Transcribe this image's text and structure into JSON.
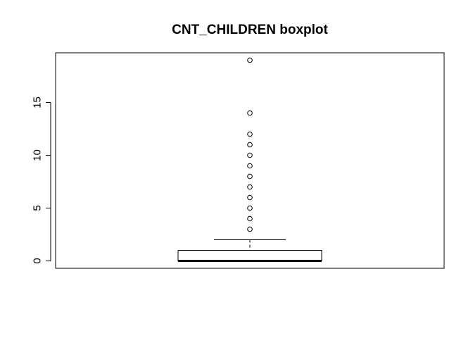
{
  "chart_data": {
    "type": "boxplot",
    "title": "CNT_CHILDREN boxplot",
    "xlabel": "",
    "ylabel": "",
    "ylim": [
      -0.7,
      19.7
    ],
    "yticks": [
      0,
      5,
      10,
      15
    ],
    "grid": false,
    "box": {
      "min": 0,
      "q1": 0,
      "median": 0,
      "q3": 1,
      "max": 2
    },
    "outliers": [
      3,
      4,
      5,
      6,
      7,
      8,
      9,
      10,
      11,
      12,
      14,
      19
    ]
  }
}
